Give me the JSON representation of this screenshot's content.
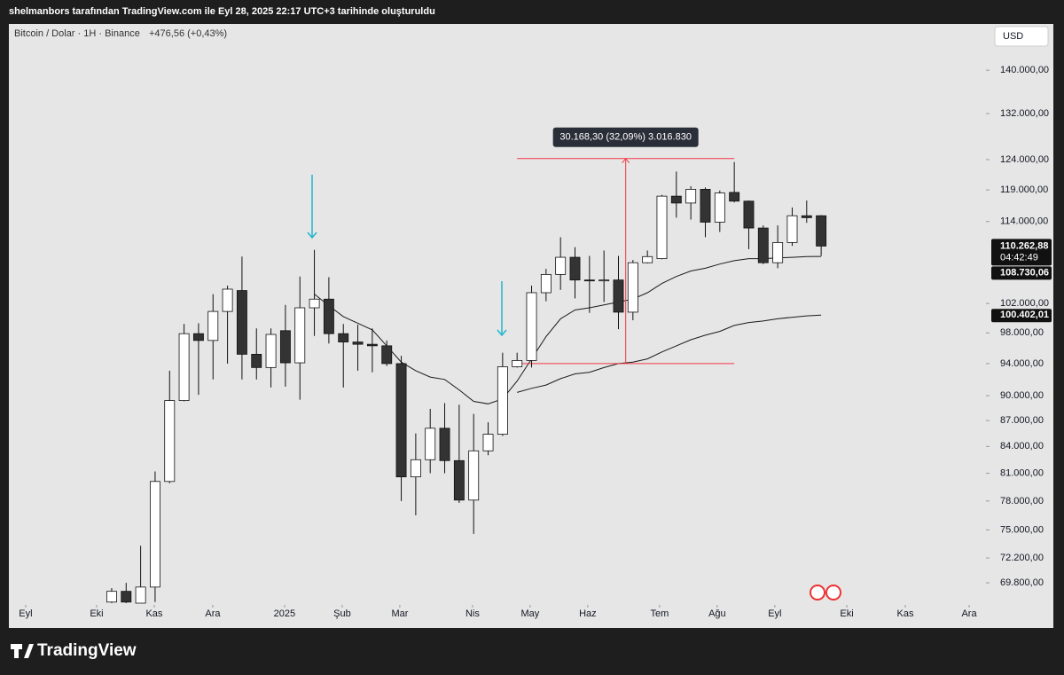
{
  "header": {
    "text": "shelmanbors tarafından TradingView.com ile Eyl 28, 2025 22:17 UTC+3 tarihinde oluşturuldu"
  },
  "chart_data": {
    "type": "candlestick",
    "symbol": "Bitcoin / Dolar · 1H · Binance",
    "change": "+476,56 (+0,43%)",
    "currency": "USD",
    "open": [
      68000,
      69000,
      67900,
      69400,
      80100,
      89400,
      97900,
      97000,
      100900,
      103800,
      95200,
      93500,
      98300,
      94100,
      101400,
      102600,
      97900,
      96800,
      96500,
      96300,
      94000,
      80600,
      82500,
      86100,
      82400,
      78100,
      83500,
      85400,
      93600,
      94400,
      103500,
      106100,
      108600,
      105300,
      105200,
      105300,
      100800,
      107800,
      108400,
      118000,
      116900,
      119100,
      113900,
      118600,
      117200,
      113000,
      107800,
      110800,
      114900,
      114900
    ],
    "high": [
      69300,
      69800,
      73400,
      81200,
      93100,
      99200,
      99300,
      103300,
      104500,
      108700,
      98600,
      98600,
      101800,
      105800,
      109700,
      105700,
      99200,
      99100,
      98600,
      97000,
      95000,
      85500,
      88400,
      89100,
      88900,
      87800,
      86800,
      95400,
      95400,
      104500,
      106900,
      111600,
      110100,
      108800,
      109600,
      108800,
      108200,
      109600,
      118200,
      122000,
      119600,
      119400,
      118900,
      123600,
      117300,
      113400,
      113400,
      116200,
      117300,
      115000
    ],
    "low": [
      67900,
      67900,
      67900,
      68000,
      79900,
      89300,
      90100,
      92000,
      94000,
      92000,
      92000,
      91000,
      91100,
      89500,
      97600,
      96600,
      91000,
      93100,
      92900,
      93700,
      78000,
      76500,
      81000,
      81000,
      77800,
      74600,
      83000,
      85200,
      93500,
      93500,
      102300,
      103900,
      102700,
      100700,
      102200,
      98500,
      99700,
      107700,
      108300,
      114600,
      114300,
      111600,
      112400,
      117000,
      109800,
      107600,
      107000,
      110300,
      113800,
      108800
    ],
    "close": [
      69000,
      68000,
      69400,
      80100,
      89400,
      97900,
      97000,
      100900,
      104000,
      95200,
      93500,
      97800,
      94100,
      101400,
      102600,
      97900,
      96800,
      96500,
      96300,
      94000,
      80600,
      82500,
      86100,
      82400,
      78100,
      83500,
      85400,
      93600,
      94400,
      103500,
      106100,
      108600,
      105300,
      105200,
      105300,
      100800,
      107800,
      108700,
      118000,
      116900,
      119100,
      113900,
      118500,
      117200,
      113000,
      107800,
      110800,
      114900,
      114600,
      110262.88
    ],
    "last_close_label": "110.262,88",
    "countdown": "04:42:49",
    "up_color": "#ffffff",
    "down_color": "#333333",
    "lines": [
      {
        "color": "#1a1a1a",
        "last_label": "108.730,06",
        "values": [
          null,
          null,
          null,
          null,
          null,
          null,
          null,
          null,
          null,
          null,
          null,
          null,
          null,
          null,
          103300,
          101700,
          100200,
          99300,
          98400,
          96300,
          94200,
          93100,
          92300,
          92000,
          90700,
          89300,
          89000,
          89600,
          91800,
          94600,
          97500,
          99900,
          101100,
          101400,
          101800,
          102200,
          102600,
          103500,
          104800,
          105800,
          106600,
          107000,
          107600,
          108100,
          108400,
          108400,
          108500,
          108600,
          108700,
          108730.06
        ]
      },
      {
        "color": "#1a1a1a",
        "last_label": "100.402,01",
        "values": [
          null,
          null,
          null,
          null,
          null,
          null,
          null,
          null,
          null,
          null,
          null,
          null,
          null,
          null,
          null,
          null,
          null,
          null,
          null,
          null,
          null,
          null,
          null,
          null,
          null,
          null,
          null,
          null,
          90400,
          90900,
          91300,
          92100,
          92700,
          92900,
          93500,
          94000,
          94200,
          94600,
          95500,
          96300,
          97100,
          97700,
          98200,
          99000,
          99400,
          99600,
          99900,
          100100,
          100300,
          100402.01
        ]
      }
    ],
    "measure": {
      "from": 94011,
      "to": 124179.3,
      "start": 28,
      "end": 43,
      "label": "30.168,30 (32,09%) 3.016.830",
      "color": "#f23645"
    },
    "ylim": [
      67900,
      148900
    ],
    "log_scale": true,
    "grid": false,
    "yticks": [
      {
        "value": 69800,
        "label": "69.800,00"
      },
      {
        "value": 72200,
        "label": "72.200,00"
      },
      {
        "value": 75000,
        "label": "75.000,00"
      },
      {
        "value": 78000,
        "label": "78.000,00"
      },
      {
        "value": 81000,
        "label": "81.000,00"
      },
      {
        "value": 84000,
        "label": "84.000,00"
      },
      {
        "value": 87000,
        "label": "87.000,00"
      },
      {
        "value": 90000,
        "label": "90.000,00"
      },
      {
        "value": 94000,
        "label": "94.000,00"
      },
      {
        "value": 98000,
        "label": "98.000,00"
      },
      {
        "value": 102000,
        "label": "102.000,00"
      },
      {
        "value": 114000,
        "label": "114.000,00"
      },
      {
        "value": 119000,
        "label": "119.000,00"
      },
      {
        "value": 124000,
        "label": "124.000,00"
      },
      {
        "value": 132000,
        "label": "132.000,00"
      },
      {
        "value": 140000,
        "label": "140.000,00"
      }
    ],
    "xlim": [
      -7.1,
      60.26
    ],
    "xticks": [
      {
        "value": -5.94,
        "label": "Eyl"
      },
      {
        "value": -1.04,
        "label": "Eki"
      },
      {
        "value": 2.94,
        "label": "Kas"
      },
      {
        "value": 6.98,
        "label": "Ara"
      },
      {
        "value": 11.94,
        "label": "2025"
      },
      {
        "value": 15.92,
        "label": "Şub"
      },
      {
        "value": 19.9,
        "label": "Mar"
      },
      {
        "value": 24.92,
        "label": "Nis"
      },
      {
        "value": 28.9,
        "label": "May"
      },
      {
        "value": 32.88,
        "label": "Haz"
      },
      {
        "value": 37.84,
        "label": "Tem"
      },
      {
        "value": 41.82,
        "label": "Ağu"
      },
      {
        "value": 45.8,
        "label": "Eyl"
      },
      {
        "value": 50.77,
        "label": "Eki"
      },
      {
        "value": 54.81,
        "label": "Kas"
      },
      {
        "value": 59.22,
        "label": "Ara"
      }
    ]
  },
  "footer": {
    "brand": "TradingView"
  }
}
